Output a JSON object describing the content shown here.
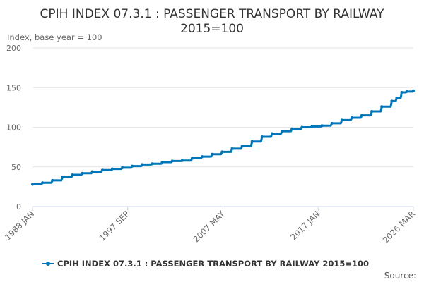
{
  "chart_data": {
    "type": "line",
    "title_lines": [
      "CPIH INDEX 07.3.1 : PASSENGER TRANSPORT BY RAILWAY",
      "2015=100"
    ],
    "subtitle": "Index, base year = 100",
    "ylim": [
      0,
      200
    ],
    "y_ticks": [
      "0",
      "50",
      "100",
      "150",
      "200"
    ],
    "x_ticks": [
      "1988 JAN",
      "1997 SEP",
      "2007 MAY",
      "2017 JAN",
      "2026 MAR"
    ],
    "x_range": [
      1988.0,
      2026.1667
    ],
    "source_label": "Source:",
    "series": [
      {
        "name": "CPIH INDEX 07.3.1 : PASSENGER TRANSPORT BY RAILWAY 2015=100",
        "color": "#0075b8",
        "x": [
          1988.0,
          1989.0,
          1990.0,
          1991.0,
          1992.0,
          1993.0,
          1994.0,
          1995.0,
          1996.0,
          1997.0,
          1998.0,
          1999.0,
          2000.0,
          2001.0,
          2002.0,
          2003.0,
          2004.0,
          2005.0,
          2006.0,
          2007.0,
          2008.0,
          2009.0,
          2010.0,
          2011.0,
          2012.0,
          2013.0,
          2014.0,
          2015.0,
          2016.0,
          2017.0,
          2018.0,
          2019.0,
          2020.0,
          2021.0,
          2022.0,
          2023.0,
          2024.0,
          2024.5,
          2025.0,
          2025.5,
          2026.1667
        ],
        "values": [
          28,
          30,
          33,
          37,
          40,
          42,
          44,
          46,
          47.5,
          49,
          51,
          53,
          54,
          56,
          57.5,
          58,
          61,
          63,
          66,
          69,
          73,
          76,
          82,
          88,
          92,
          95,
          98,
          100,
          101,
          102,
          105,
          109,
          112,
          115,
          120,
          126,
          133,
          137,
          144,
          145,
          146
        ]
      }
    ]
  }
}
